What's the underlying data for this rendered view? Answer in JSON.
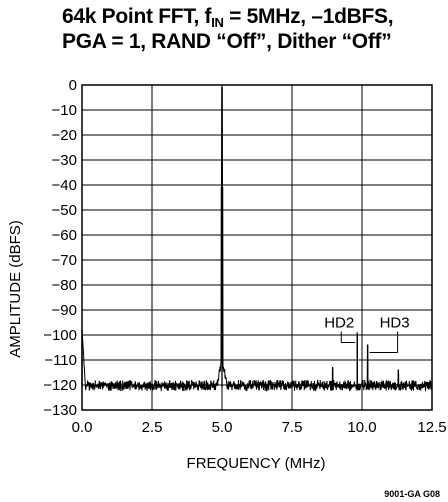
{
  "chart_data": {
    "type": "line",
    "title_line1_prefix": "64k Point FFT, f",
    "title_sub": "IN",
    "title_line1_suffix": " = 5MHz, –1dBFS,",
    "title_line2": "PGA = 1, RAND “Off”, Dither “Off”",
    "xlabel": "FREQUENCY (MHz)",
    "ylabel": "AMPLITUDE (dBFS)",
    "xlim": [
      0,
      12.5
    ],
    "ylim": [
      -130,
      0
    ],
    "xticks": [
      0,
      2.5,
      5,
      7.5,
      10,
      12.5
    ],
    "xtick_labels": [
      "0.0",
      "2.5",
      "5.0",
      "7.5",
      "10.0",
      "12.5"
    ],
    "yticks": [
      0,
      -10,
      -20,
      -30,
      -40,
      -50,
      -60,
      -70,
      -80,
      -90,
      -100,
      -110,
      -120,
      -130
    ],
    "ytick_labels": [
      "0",
      "−10",
      "−20",
      "−30",
      "−40",
      "−50",
      "−60",
      "−70",
      "−80",
      "−90",
      "−100",
      "−110",
      "−120",
      "−130"
    ],
    "grid": true,
    "noise_floor_dbfs": -121,
    "series": [
      {
        "peaks": [
          {
            "x": 0.0,
            "y": -98
          },
          {
            "x": 5.0,
            "y": -1
          },
          {
            "x": 9.83,
            "y": -99
          },
          {
            "x": 10.2,
            "y": -104
          },
          {
            "x": 8.95,
            "y": -113
          },
          {
            "x": 11.3,
            "y": -114
          }
        ]
      }
    ],
    "annotations": [
      {
        "text": "HD2",
        "x": 9.83
      },
      {
        "text": "HD3",
        "x": 10.2
      }
    ],
    "figure_code": "9001-GA G08"
  }
}
